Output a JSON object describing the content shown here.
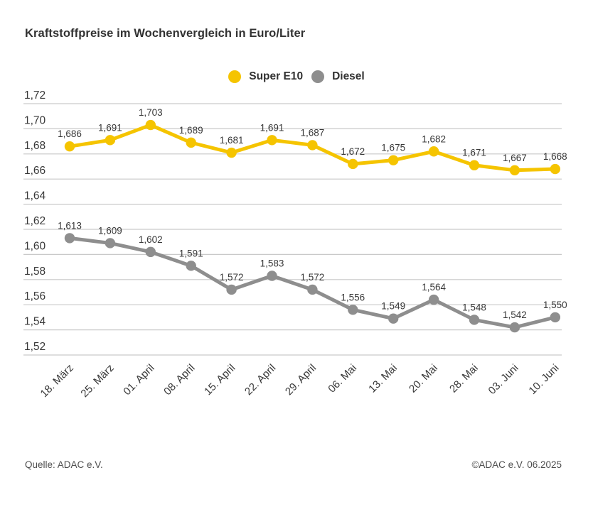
{
  "title": "Kraftstoffpreise im Wochenvergleich in Euro/Liter",
  "colors": {
    "super_e10": "#F5C400",
    "diesel": "#8E8E8E",
    "grid": "#C9C9C9",
    "text": "#383838",
    "footer_text": "#4D4D4D"
  },
  "legend": [
    {
      "label": "Super E10",
      "color": "#F5C400"
    },
    {
      "label": "Diesel",
      "color": "#8E8E8E"
    }
  ],
  "chart_data": {
    "type": "line",
    "title": "Kraftstoffpreise im Wochenvergleich in Euro/Liter",
    "xlabel": "",
    "ylabel": "Euro/Liter",
    "categories": [
      "18. März",
      "25. März",
      "01. April",
      "08. April",
      "15. April",
      "22. April",
      "29. April",
      "06. Mai",
      "13. Mai",
      "20. Mai",
      "28. Mai",
      "03. Juni",
      "10. Juni"
    ],
    "series": [
      {
        "name": "Super E10",
        "color": "#F5C400",
        "values": [
          1.686,
          1.691,
          1.703,
          1.689,
          1.681,
          1.691,
          1.687,
          1.672,
          1.675,
          1.682,
          1.671,
          1.667,
          1.668
        ],
        "labels": [
          "1,686",
          "1,691",
          "1,703",
          "1,689",
          "1,681",
          "1,691",
          "1,687",
          "1,672",
          "1,675",
          "1,682",
          "1,671",
          "1,667",
          "1,668"
        ]
      },
      {
        "name": "Diesel",
        "color": "#8E8E8E",
        "values": [
          1.613,
          1.609,
          1.602,
          1.591,
          1.572,
          1.583,
          1.572,
          1.556,
          1.549,
          1.564,
          1.548,
          1.542,
          1.55
        ],
        "labels": [
          "1,613",
          "1,609",
          "1,602",
          "1,591",
          "1,572",
          "1,583",
          "1,572",
          "1,556",
          "1,549",
          "1,564",
          "1,548",
          "1,542",
          "1,550"
        ]
      }
    ],
    "ylim": [
      1.52,
      1.72
    ],
    "ytick_step": 0.02,
    "ytick_labels": [
      "1,72",
      "1,70",
      "1,68",
      "1,66",
      "1,64",
      "1,62",
      "1,60",
      "1,58",
      "1,56",
      "1,54",
      "1,52"
    ],
    "grid": true,
    "legend_position": "top-center"
  },
  "footer": {
    "source": "Quelle: ADAC e.V.",
    "copyright": "©ADAC e.V. 06.2025"
  }
}
